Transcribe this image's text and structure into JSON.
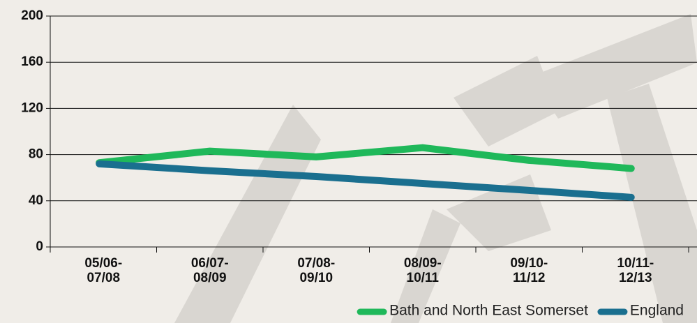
{
  "chart_data": {
    "type": "line",
    "categories": [
      "05/06-07/08",
      "06/07-08/09",
      "07/08-09/10",
      "08/09-10/11",
      "09/10-11/12",
      "10/11-12/13"
    ],
    "series": [
      {
        "name": "Bath and North East Somerset",
        "color": "#1fb85a",
        "values": [
          73,
          83,
          78,
          86,
          75,
          68
        ]
      },
      {
        "name": "England",
        "color": "#1a6f8f",
        "values": [
          72,
          66,
          61,
          55,
          49,
          43
        ]
      }
    ],
    "ylim": [
      0,
      200
    ],
    "yticks": [
      0,
      40,
      80,
      120,
      160,
      200
    ],
    "grid": true,
    "legend": "bottom-right"
  }
}
